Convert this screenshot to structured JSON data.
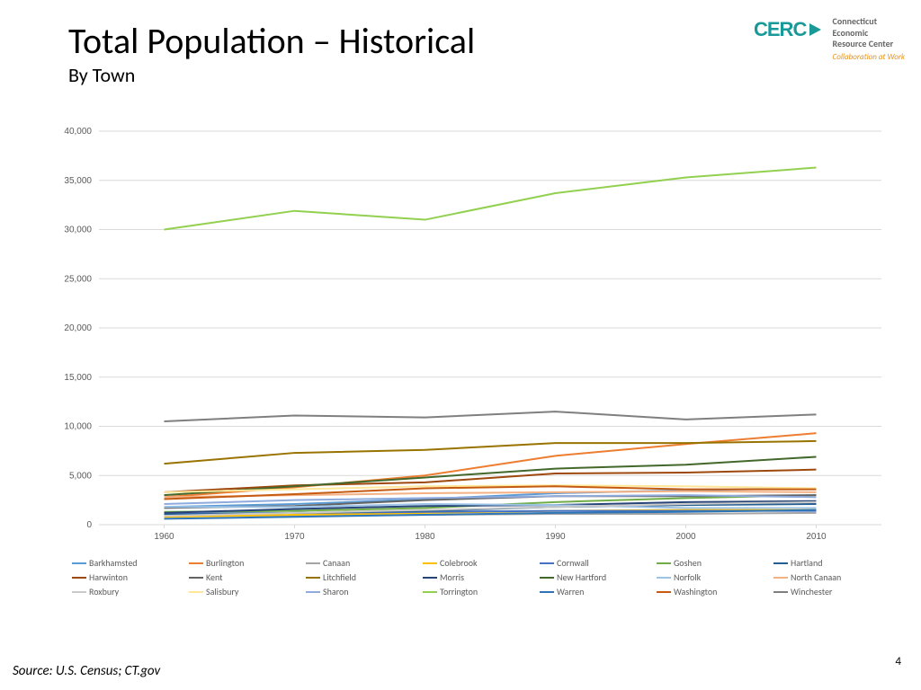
{
  "title": "Total Population – Historical",
  "subtitle": "By Town",
  "source": "Source: U.S. Census; CT.gov",
  "page_number": "4",
  "logo": {
    "line1": "Connecticut",
    "line2": "Economic",
    "line3": "Resource Center",
    "tagline": "Collaboration at Work",
    "mark_text": "CERC",
    "mark_color": "#1a9999",
    "arrow_color": "#1a9999"
  },
  "chart": {
    "type": "line",
    "background_color": "#ffffff",
    "grid_color": "#d9d9d9",
    "axis_text_color": "#595959",
    "axis_fontsize": 10,
    "line_width": 2,
    "x_categories": [
      "1960",
      "1970",
      "1980",
      "1990",
      "2000",
      "2010"
    ],
    "ylim": [
      0,
      40000
    ],
    "ytick_step": 5000,
    "ytick_labels": [
      "0",
      "5,000",
      "10,000",
      "15,000",
      "20,000",
      "25,000",
      "30,000",
      "35,000",
      "40,000"
    ],
    "series": [
      {
        "name": "Barkhamsted",
        "color": "#5b9bd5",
        "values": [
          1800,
          2100,
          2600,
          3200,
          3500,
          3700
        ]
      },
      {
        "name": "Burlington",
        "color": "#ed7d31",
        "values": [
          2800,
          3800,
          5000,
          7000,
          8200,
          9300
        ]
      },
      {
        "name": "Canaan",
        "color": "#a5a5a5",
        "values": [
          900,
          900,
          1000,
          1100,
          1100,
          1200
        ]
      },
      {
        "name": "Colebrook",
        "color": "#ffc000",
        "values": [
          800,
          1000,
          1200,
          1400,
          1500,
          1500
        ]
      },
      {
        "name": "Cornwall",
        "color": "#4472c4",
        "values": [
          1100,
          1200,
          1300,
          1400,
          1400,
          1400
        ]
      },
      {
        "name": "Goshen",
        "color": "#70ad47",
        "values": [
          1300,
          1400,
          1700,
          2300,
          2700,
          3000
        ]
      },
      {
        "name": "Hartland",
        "color": "#255e91",
        "values": [
          1000,
          1200,
          1400,
          1800,
          2000,
          2100
        ]
      },
      {
        "name": "Harwinton",
        "color": "#9e480e",
        "values": [
          3300,
          4000,
          4300,
          5200,
          5300,
          5600
        ]
      },
      {
        "name": "Kent",
        "color": "#636363",
        "values": [
          1700,
          1900,
          2500,
          2900,
          2900,
          3000
        ]
      },
      {
        "name": "Litchfield",
        "color": "#997300",
        "values": [
          6200,
          7300,
          7600,
          8300,
          8300,
          8500
        ]
      },
      {
        "name": "Morris",
        "color": "#264478",
        "values": [
          1200,
          1600,
          1900,
          2000,
          2300,
          2400
        ]
      },
      {
        "name": "New Hartford",
        "color": "#43682b",
        "values": [
          3000,
          3900,
          4800,
          5700,
          6100,
          6900
        ]
      },
      {
        "name": "Norfolk",
        "color": "#9dc3e6",
        "values": [
          1800,
          1800,
          2100,
          2000,
          1700,
          1700
        ]
      },
      {
        "name": "North Canaan",
        "color": "#f4b183",
        "values": [
          2800,
          3000,
          3200,
          3300,
          3400,
          3300
        ]
      },
      {
        "name": "Roxbury",
        "color": "#c9c9c9",
        "values": [
          900,
          1200,
          1500,
          1800,
          2100,
          2300
        ]
      },
      {
        "name": "Salisbury",
        "color": "#ffe699",
        "values": [
          3300,
          3600,
          3900,
          4000,
          3900,
          3700
        ]
      },
      {
        "name": "Sharon",
        "color": "#8faadc",
        "values": [
          2100,
          2500,
          2700,
          2900,
          3000,
          2800
        ]
      },
      {
        "name": "Torrington",
        "color": "#92d050",
        "values": [
          30000,
          31900,
          31000,
          33700,
          35300,
          36300
        ]
      },
      {
        "name": "Warren",
        "color": "#2e75b6",
        "values": [
          600,
          800,
          1000,
          1200,
          1300,
          1500
        ]
      },
      {
        "name": "Washington",
        "color": "#c55a11",
        "values": [
          2600,
          3100,
          3700,
          3900,
          3600,
          3600
        ]
      },
      {
        "name": "Winchester",
        "color": "#7f7f7f",
        "values": [
          10500,
          11100,
          10900,
          11500,
          10700,
          11200
        ]
      }
    ]
  }
}
